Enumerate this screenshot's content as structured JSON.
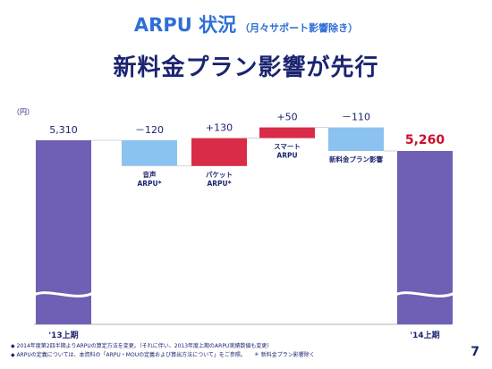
{
  "header": {
    "title": "ARPU 状況",
    "subtitle": "（月々サポート影響除き）",
    "headline": "新料金プラン影響が先行"
  },
  "chart_data": {
    "type": "waterfall",
    "unit_label": "（円）",
    "bars": [
      {
        "label": "'13上期",
        "kind": "total",
        "value": 5310,
        "value_text": "5,310"
      },
      {
        "label": "音声\nARPU*",
        "kind": "delta",
        "value": -120,
        "value_text": "－120"
      },
      {
        "label": "パケット\nARPU*",
        "kind": "delta",
        "value": 130,
        "value_text": "+130"
      },
      {
        "label": "スマート\nARPU",
        "kind": "delta",
        "value": 50,
        "value_text": "+50"
      },
      {
        "label": "新料金プラン影響",
        "kind": "delta",
        "value": -110,
        "value_text": "－110"
      },
      {
        "label": "'14上期",
        "kind": "total",
        "value": 5260,
        "value_text": "5,260"
      }
    ],
    "colors": {
      "total": "#6f5fb5",
      "negative": "#8cc2f0",
      "positive": "#d82c48",
      "final_value": "#c8102e",
      "text": "#1b2470"
    }
  },
  "footnotes": [
    "◆ 2014年度第2四半期よりARPUの算定方法を変更。（それに伴い、2013年度上期のARPU実績数値も変更）",
    "◆ ARPUの定義については、本資料の「ARPU・MOUの定義および算出方法について」をご参照。　　＊ 新料金プラン影響除く"
  ],
  "page_number": "7"
}
